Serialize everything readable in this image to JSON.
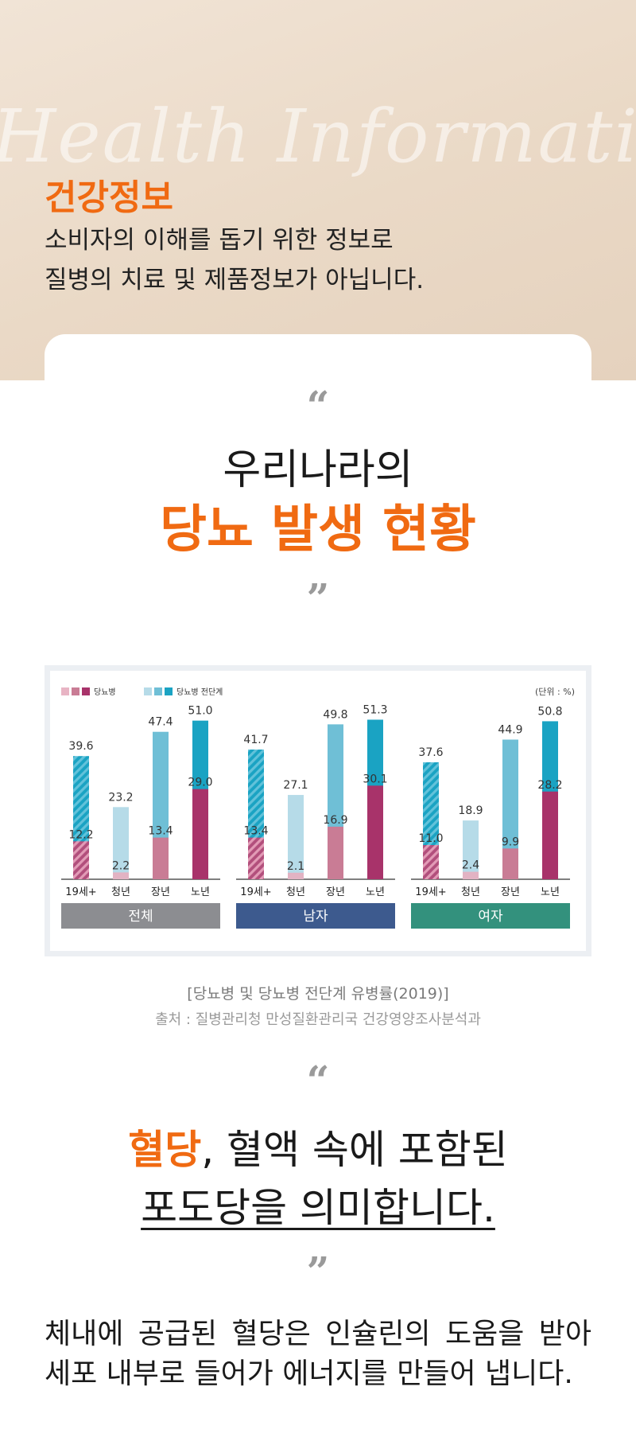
{
  "hero": {
    "script_text": "Health Information",
    "title": "건강정보",
    "lines": [
      "소비자의 이해를 돕기 위한 정보로",
      "질병의 치료 및 제품정보가 아닙니다."
    ]
  },
  "section1": {
    "open_quote": "“",
    "line1": "우리나라의",
    "line2": "당뇨 발생 현황",
    "close_quote": "”"
  },
  "chart_data": {
    "type": "bar",
    "unit_label": "(단위 : %)",
    "legend": [
      {
        "name": "당뇨병",
        "colors": [
          "#e8b4c4",
          "#c97c95",
          "#a8336a"
        ]
      },
      {
        "name": "당뇨병 전단계",
        "colors": [
          "#b6dbe8",
          "#6fbfd6",
          "#1aa3c3"
        ]
      }
    ],
    "categories": [
      "19세+",
      "청년",
      "장년",
      "노년"
    ],
    "groups": [
      {
        "name": "전체",
        "color": "#8c8d91",
        "total": [
          39.6,
          23.2,
          47.4,
          51.0
        ],
        "diabetes": [
          12.2,
          2.2,
          13.4,
          29.0
        ],
        "total_labels": [
          "39.6",
          "23.2",
          "47.4",
          "51.0"
        ],
        "diabetes_labels": [
          "12.2",
          "2.2",
          "13.4",
          "29.0"
        ]
      },
      {
        "name": "남자",
        "color": "#3d5a8e",
        "total": [
          41.7,
          27.1,
          49.8,
          51.3
        ],
        "diabetes": [
          13.4,
          2.1,
          16.9,
          30.1
        ],
        "total_labels": [
          "41.7",
          "27.1",
          "49.8",
          "51.3"
        ],
        "diabetes_labels": [
          "13.4",
          "2.1",
          "16.9",
          "30.1"
        ]
      },
      {
        "name": "여자",
        "color": "#33917d",
        "total": [
          37.6,
          18.9,
          44.9,
          50.8
        ],
        "diabetes": [
          11.0,
          2.4,
          9.9,
          28.2
        ],
        "total_labels": [
          "37.6",
          "18.9",
          "44.9",
          "50.8"
        ],
        "diabetes_labels": [
          "11.0",
          "2.4",
          "9.9",
          "28.2"
        ]
      }
    ],
    "ylim": [
      0,
      55
    ],
    "grid": false
  },
  "captions": {
    "title": "[당뇨병 및 당뇨병 전단계 유병률(2019)]",
    "source": "출처 : 질병관리청 만성질환관리국 건강영양조사분석과"
  },
  "section2": {
    "open_quote": "“",
    "highlight": "혈당",
    "line1_rest": ", 혈액 속에 포함된",
    "line2": "포도당을 의미합니다.",
    "close_quote": "”"
  },
  "body_text": "체내에 공급된 혈당은 인슐린의 도움을 받아 세포 내부로 들어가 에너지를 만들어 냅니다."
}
